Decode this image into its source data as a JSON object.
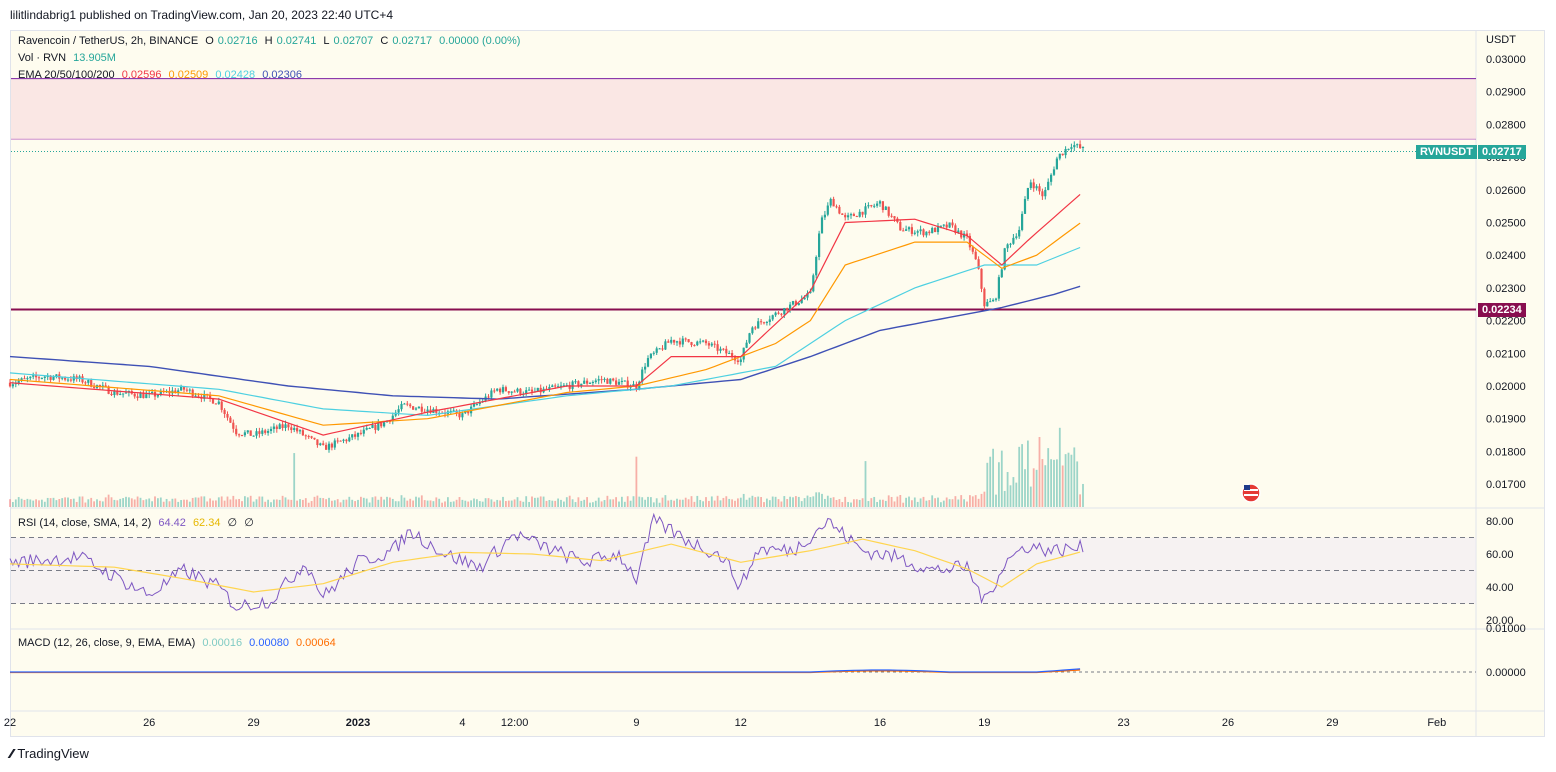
{
  "header": {
    "published": "lilitlindabrig1 published on TradingView.com, Jan 20, 2023 22:40 UTC+4"
  },
  "brand": {
    "name": "TradingView"
  },
  "colors": {
    "up": "#26a69a",
    "down": "#ef5350",
    "resistance": "#7b1fa2",
    "support": "#880e4f",
    "ema20": "#f23645",
    "ema50": "#ff9800",
    "ema100": "#4dd0e1",
    "ema200": "#3f51b5",
    "rsi": "#7e57c2",
    "rsi_ma": "#ffd54f",
    "macd": "#2962ff",
    "signal": "#ff6d00",
    "tag": "#26a69a"
  },
  "price_legend": {
    "symbol": "Ravencoin / TetherUS, 2h, BINANCE",
    "o_label": "O",
    "o": "0.02716",
    "h_label": "H",
    "h": "0.02741",
    "l_label": "L",
    "l": "0.02707",
    "c_label": "C",
    "c": "0.02717",
    "change": "0.00000 (0.00%)"
  },
  "vol_legend": {
    "label": "Vol · RVN",
    "value": "13.905M"
  },
  "ema_legend": {
    "label": "EMA 20/50/100/200",
    "v20": "0.02596",
    "v50": "0.02509",
    "v100": "0.02428",
    "v200": "0.02306"
  },
  "rsi_legend": {
    "label": "RSI (14, close, SMA, 14, 2)",
    "value": "64.42",
    "ma": "62.34",
    "x1": "∅",
    "x2": "∅"
  },
  "macd_legend": {
    "label": "MACD (12, 26, close, 9, EMA, EMA)",
    "hist": "0.00016",
    "macd": "0.00080",
    "signal": "0.00064"
  },
  "currency_label": "USDT",
  "price_tag": {
    "symbol": "RVNUSDT",
    "value": "0.02717"
  },
  "support_tag": {
    "value": "0.02234"
  },
  "chart_data": {
    "type": "candlestick",
    "price_axis": {
      "ylim": [
        0.0165,
        0.0304
      ],
      "ticks": [
        "0.03000",
        "0.02900",
        "0.02800",
        "0.02700",
        "0.02600",
        "0.02500",
        "0.02400",
        "0.02300",
        "0.02200",
        "0.02100",
        "0.02000",
        "0.01900",
        "0.01800",
        "0.01700"
      ]
    },
    "rsi_axis": {
      "ylim": [
        15,
        85
      ],
      "ticks": [
        "80.00",
        "60.00",
        "40.00",
        "20.00"
      ],
      "bands": [
        30,
        50,
        70
      ]
    },
    "macd_axis": {
      "ticks": [
        "0.01000",
        "0.00000"
      ]
    },
    "x_axis": {
      "start": "Dec 22",
      "end": "Feb",
      "ticks": [
        {
          "label": "22",
          "day": 0
        },
        {
          "label": "26",
          "day": 4
        },
        {
          "label": "29",
          "day": 7
        },
        {
          "label": "2023",
          "day": 10
        },
        {
          "label": "4",
          "day": 13
        },
        {
          "label": "12:00",
          "day": 14.5
        },
        {
          "label": "9",
          "day": 18
        },
        {
          "label": "12",
          "day": 21
        },
        {
          "label": "16",
          "day": 25
        },
        {
          "label": "19",
          "day": 28
        },
        {
          "label": "23",
          "day": 32
        },
        {
          "label": "26",
          "day": 35
        },
        {
          "label": "29",
          "day": 38
        },
        {
          "label": "Feb",
          "day": 41
        }
      ]
    },
    "price_anchors": [
      {
        "day": 0,
        "price": 0.0201
      },
      {
        "day": 1,
        "price": 0.0203
      },
      {
        "day": 2,
        "price": 0.0202
      },
      {
        "day": 3,
        "price": 0.0198
      },
      {
        "day": 4,
        "price": 0.0197
      },
      {
        "day": 5,
        "price": 0.0199
      },
      {
        "day": 6,
        "price": 0.0195
      },
      {
        "day": 6.5,
        "price": 0.0186
      },
      {
        "day": 7,
        "price": 0.0185
      },
      {
        "day": 8,
        "price": 0.0188
      },
      {
        "day": 9,
        "price": 0.0181
      },
      {
        "day": 10,
        "price": 0.0185
      },
      {
        "day": 10.8,
        "price": 0.0189
      },
      {
        "day": 11.3,
        "price": 0.0194
      },
      {
        "day": 12,
        "price": 0.0193
      },
      {
        "day": 13,
        "price": 0.0191
      },
      {
        "day": 14,
        "price": 0.0199
      },
      {
        "day": 15,
        "price": 0.0198
      },
      {
        "day": 16,
        "price": 0.02
      },
      {
        "day": 17,
        "price": 0.0202
      },
      {
        "day": 18,
        "price": 0.02
      },
      {
        "day": 18.3,
        "price": 0.0208
      },
      {
        "day": 19,
        "price": 0.0214
      },
      {
        "day": 20,
        "price": 0.0213
      },
      {
        "day": 21,
        "price": 0.0208
      },
      {
        "day": 21.3,
        "price": 0.0218
      },
      {
        "day": 22,
        "price": 0.0222
      },
      {
        "day": 23,
        "price": 0.0228
      },
      {
        "day": 23.3,
        "price": 0.025
      },
      {
        "day": 23.6,
        "price": 0.0257
      },
      {
        "day": 24,
        "price": 0.0251
      },
      {
        "day": 25,
        "price": 0.0256
      },
      {
        "day": 25.6,
        "price": 0.0248
      },
      {
        "day": 26.3,
        "price": 0.0247
      },
      {
        "day": 27,
        "price": 0.0249
      },
      {
        "day": 27.5,
        "price": 0.0245
      },
      {
        "day": 27.8,
        "price": 0.0237
      },
      {
        "day": 28,
        "price": 0.0225
      },
      {
        "day": 28.3,
        "price": 0.0226
      },
      {
        "day": 28.6,
        "price": 0.0242
      },
      {
        "day": 29,
        "price": 0.0248
      },
      {
        "day": 29.3,
        "price": 0.0263
      },
      {
        "day": 29.7,
        "price": 0.0258
      },
      {
        "day": 30.1,
        "price": 0.027
      },
      {
        "day": 30.5,
        "price": 0.0274
      },
      {
        "day": 30.9,
        "price": 0.0272
      }
    ],
    "ema_anchors": {
      "ema20": [
        {
          "day": 0,
          "v": 0.0201
        },
        {
          "day": 6,
          "v": 0.0196
        },
        {
          "day": 9,
          "v": 0.0185
        },
        {
          "day": 12,
          "v": 0.0192
        },
        {
          "day": 16,
          "v": 0.02
        },
        {
          "day": 18,
          "v": 0.02
        },
        {
          "day": 19,
          "v": 0.0209
        },
        {
          "day": 21,
          "v": 0.0209
        },
        {
          "day": 23,
          "v": 0.0229
        },
        {
          "day": 24,
          "v": 0.025
        },
        {
          "day": 26,
          "v": 0.0251
        },
        {
          "day": 27.5,
          "v": 0.0246
        },
        {
          "day": 28.5,
          "v": 0.0237
        },
        {
          "day": 29.3,
          "v": 0.0245
        },
        {
          "day": 30.9,
          "v": 0.026
        }
      ],
      "ema50": [
        {
          "day": 0,
          "v": 0.0202
        },
        {
          "day": 6,
          "v": 0.0197
        },
        {
          "day": 9,
          "v": 0.0188
        },
        {
          "day": 12,
          "v": 0.019
        },
        {
          "day": 16,
          "v": 0.0198
        },
        {
          "day": 18,
          "v": 0.02
        },
        {
          "day": 20,
          "v": 0.0205
        },
        {
          "day": 22,
          "v": 0.0213
        },
        {
          "day": 23,
          "v": 0.022
        },
        {
          "day": 24,
          "v": 0.0237
        },
        {
          "day": 26,
          "v": 0.0244
        },
        {
          "day": 27.5,
          "v": 0.0244
        },
        {
          "day": 28.5,
          "v": 0.0236
        },
        {
          "day": 29.5,
          "v": 0.024
        },
        {
          "day": 30.9,
          "v": 0.0251
        }
      ],
      "ema100": [
        {
          "day": 0,
          "v": 0.0204
        },
        {
          "day": 6,
          "v": 0.0199
        },
        {
          "day": 9,
          "v": 0.0193
        },
        {
          "day": 12,
          "v": 0.0191
        },
        {
          "day": 16,
          "v": 0.0197
        },
        {
          "day": 19,
          "v": 0.02
        },
        {
          "day": 22,
          "v": 0.0206
        },
        {
          "day": 24,
          "v": 0.022
        },
        {
          "day": 26,
          "v": 0.023
        },
        {
          "day": 28,
          "v": 0.0237
        },
        {
          "day": 29.5,
          "v": 0.0237
        },
        {
          "day": 30.9,
          "v": 0.0243
        }
      ],
      "ema200": [
        {
          "day": 0,
          "v": 0.0209
        },
        {
          "day": 4,
          "v": 0.0206
        },
        {
          "day": 8,
          "v": 0.02
        },
        {
          "day": 11,
          "v": 0.0197
        },
        {
          "day": 14,
          "v": 0.0196
        },
        {
          "day": 18,
          "v": 0.0199
        },
        {
          "day": 21,
          "v": 0.0202
        },
        {
          "day": 23,
          "v": 0.0209
        },
        {
          "day": 25,
          "v": 0.0217
        },
        {
          "day": 27,
          "v": 0.0221
        },
        {
          "day": 28.5,
          "v": 0.0224
        },
        {
          "day": 30,
          "v": 0.0228
        },
        {
          "day": 30.9,
          "v": 0.0231
        }
      ]
    },
    "levels": {
      "resistance_top": 0.0294,
      "resistance_bottom": 0.02755,
      "support": 0.02234,
      "last": 0.02717
    },
    "rsi_anchors": [
      {
        "day": 0,
        "v": 55
      },
      {
        "day": 2,
        "v": 58
      },
      {
        "day": 4,
        "v": 35
      },
      {
        "day": 5,
        "v": 50
      },
      {
        "day": 6,
        "v": 40
      },
      {
        "day": 6.5,
        "v": 28
      },
      {
        "day": 7.5,
        "v": 32
      },
      {
        "day": 8.5,
        "v": 55
      },
      {
        "day": 9,
        "v": 34
      },
      {
        "day": 10,
        "v": 55
      },
      {
        "day": 11,
        "v": 62
      },
      {
        "day": 11.5,
        "v": 74
      },
      {
        "day": 12.5,
        "v": 60
      },
      {
        "day": 13.5,
        "v": 52
      },
      {
        "day": 14.5,
        "v": 72
      },
      {
        "day": 15.5,
        "v": 63
      },
      {
        "day": 16.5,
        "v": 55
      },
      {
        "day": 17.5,
        "v": 60
      },
      {
        "day": 18,
        "v": 45
      },
      {
        "day": 18.5,
        "v": 80
      },
      {
        "day": 19.5,
        "v": 68
      },
      {
        "day": 20.5,
        "v": 58
      },
      {
        "day": 21,
        "v": 40
      },
      {
        "day": 21.5,
        "v": 63
      },
      {
        "day": 22.5,
        "v": 62
      },
      {
        "day": 23.5,
        "v": 80
      },
      {
        "day": 24.5,
        "v": 62
      },
      {
        "day": 25.5,
        "v": 58
      },
      {
        "day": 26.5,
        "v": 50
      },
      {
        "day": 27.5,
        "v": 52
      },
      {
        "day": 28,
        "v": 31
      },
      {
        "day": 28.6,
        "v": 55
      },
      {
        "day": 29.2,
        "v": 65
      },
      {
        "day": 30,
        "v": 62
      },
      {
        "day": 30.9,
        "v": 64
      }
    ],
    "rsi_ma_anchors": [
      {
        "day": 0,
        "v": 54
      },
      {
        "day": 3,
        "v": 52
      },
      {
        "day": 5,
        "v": 45
      },
      {
        "day": 7,
        "v": 37
      },
      {
        "day": 9,
        "v": 42
      },
      {
        "day": 11,
        "v": 55
      },
      {
        "day": 13,
        "v": 61
      },
      {
        "day": 15,
        "v": 60
      },
      {
        "day": 17,
        "v": 56
      },
      {
        "day": 19,
        "v": 66
      },
      {
        "day": 21,
        "v": 55
      },
      {
        "day": 23,
        "v": 62
      },
      {
        "day": 24.5,
        "v": 69
      },
      {
        "day": 26,
        "v": 62
      },
      {
        "day": 27.5,
        "v": 51
      },
      {
        "day": 28.5,
        "v": 40
      },
      {
        "day": 29.5,
        "v": 54
      },
      {
        "day": 30.9,
        "v": 62
      }
    ]
  }
}
